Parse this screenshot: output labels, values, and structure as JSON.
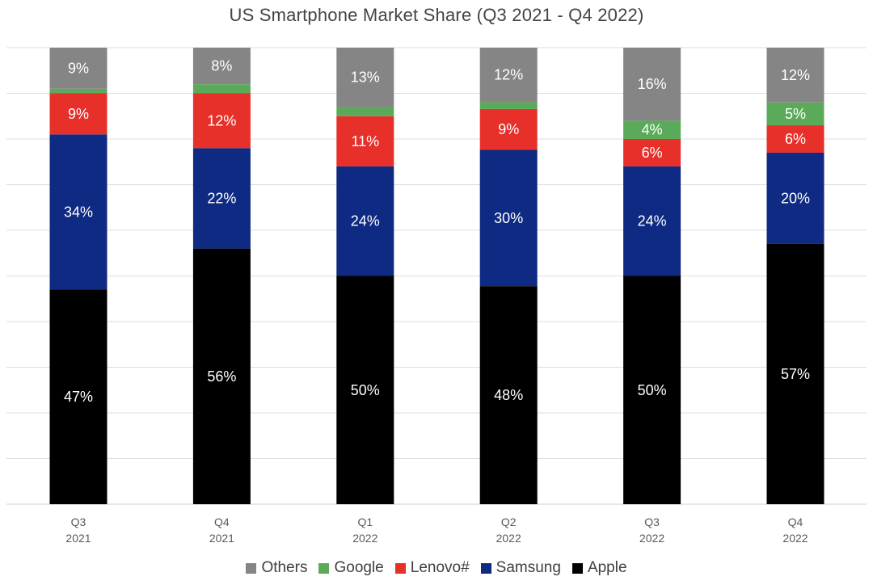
{
  "chart_data": {
    "type": "bar",
    "stacked": true,
    "title": "US Smartphone Market Share (Q3 2021 - Q4 2022)",
    "categories": [
      [
        "Q3",
        "2021"
      ],
      [
        "Q4",
        "2021"
      ],
      [
        "Q1",
        "2022"
      ],
      [
        "Q2",
        "2022"
      ],
      [
        "Q3",
        "2022"
      ],
      [
        "Q4",
        "2022"
      ]
    ],
    "series": [
      {
        "name": "Apple",
        "color": "#000000",
        "values": [
          47,
          56,
          50,
          48,
          50,
          57
        ],
        "labels": [
          "47%",
          "56%",
          "50%",
          "48%",
          "50%",
          "57%"
        ]
      },
      {
        "name": "Samsung",
        "color": "#0f2a82",
        "values": [
          34,
          22,
          24,
          30,
          24,
          20
        ],
        "labels": [
          "34%",
          "22%",
          "24%",
          "30%",
          "24%",
          "20%"
        ]
      },
      {
        "name": "Lenovo#",
        "color": "#e8302a",
        "values": [
          9,
          12,
          11,
          9,
          6,
          6
        ],
        "labels": [
          "9%",
          "12%",
          "11%",
          "9%",
          "6%",
          "6%"
        ]
      },
      {
        "name": "Google",
        "color": "#5aaa5a",
        "values": [
          1,
          2,
          2,
          1.5,
          4,
          5
        ],
        "labels": [
          "",
          "",
          "",
          "",
          "4%",
          "5%"
        ]
      },
      {
        "name": "Others",
        "color": "#858585",
        "values": [
          9,
          8,
          13,
          12,
          16,
          12
        ],
        "labels": [
          "9%",
          "8%",
          "13%",
          "12%",
          "16%",
          "12%"
        ]
      }
    ],
    "legend_order": [
      "Others",
      "Google",
      "Lenovo#",
      "Samsung",
      "Apple"
    ],
    "ylim": [
      0,
      100
    ],
    "grid": true,
    "legend_position": "bottom"
  }
}
